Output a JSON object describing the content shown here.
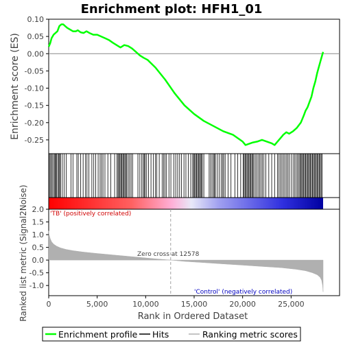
{
  "title": "Enrichment plot: HFH1_01",
  "colors": {
    "es_line": "#00ff00",
    "hit_line": "#000000",
    "metric_fill": "#b0b0b0",
    "zero_cross_line": "#a0a0a0",
    "positive_label": "#d00000",
    "negative_label": "#0000c0"
  },
  "chart_data": [
    {
      "name": "enrichment-profile",
      "type": "line",
      "ylabel": "Enrichment score (ES)",
      "xlim": [
        0,
        30000
      ],
      "ylim": [
        -0.29,
        0.1
      ],
      "yticks": [
        "0.10",
        "0.05",
        "0.00",
        "-0.05",
        "-0.10",
        "-0.15",
        "-0.20",
        "-0.25"
      ],
      "ytick_values": [
        0.1,
        0.05,
        0.0,
        -0.05,
        -0.1,
        -0.15,
        -0.2,
        -0.25
      ],
      "grid": false,
      "series": [
        {
          "name": "Enrichment profile",
          "x": [
            0,
            150,
            300,
            500,
            700,
            900,
            1100,
            1300,
            1500,
            1700,
            1900,
            2200,
            2500,
            2800,
            3000,
            3300,
            3600,
            3900,
            4200,
            4600,
            5000,
            5400,
            5800,
            6200,
            6600,
            7000,
            7400,
            7800,
            8200,
            8600,
            9000,
            9400,
            9800,
            10200,
            11000,
            12000,
            13000,
            14000,
            15000,
            16000,
            17000,
            18000,
            19000,
            20000,
            20300,
            20600,
            21000,
            21500,
            22000,
            22500,
            23000,
            23300,
            23600,
            23900,
            24200,
            24500,
            24800,
            25200,
            25600,
            26000,
            26300,
            26500,
            26700,
            26900,
            27100,
            27300,
            27500,
            27700,
            27900,
            28100,
            28300
          ],
          "values": [
            0.02,
            0.03,
            0.045,
            0.055,
            0.06,
            0.065,
            0.08,
            0.085,
            0.085,
            0.08,
            0.075,
            0.07,
            0.065,
            0.065,
            0.068,
            0.062,
            0.06,
            0.065,
            0.06,
            0.055,
            0.055,
            0.05,
            0.045,
            0.04,
            0.032,
            0.025,
            0.018,
            0.025,
            0.022,
            0.015,
            0.005,
            -0.005,
            -0.012,
            -0.018,
            -0.04,
            -0.075,
            -0.115,
            -0.15,
            -0.175,
            -0.195,
            -0.21,
            -0.225,
            -0.235,
            -0.255,
            -0.265,
            -0.262,
            -0.258,
            -0.255,
            -0.25,
            -0.255,
            -0.26,
            -0.265,
            -0.255,
            -0.245,
            -0.235,
            -0.228,
            -0.232,
            -0.225,
            -0.215,
            -0.2,
            -0.18,
            -0.165,
            -0.155,
            -0.14,
            -0.125,
            -0.1,
            -0.08,
            -0.055,
            -0.035,
            -0.015,
            0.005
          ]
        }
      ]
    },
    {
      "name": "hits",
      "type": "scatter",
      "series": [
        {
          "name": "Hits",
          "x": [
            80,
            200,
            300,
            420,
            560,
            650,
            720,
            820,
            950,
            1050,
            1150,
            1200,
            1400,
            1600,
            1800,
            2300,
            2500,
            2900,
            3050,
            3300,
            3550,
            3800,
            3950,
            4150,
            4450,
            4650,
            4850,
            5100,
            5300,
            5450,
            5600,
            5800,
            6100,
            6400,
            6800,
            7050,
            7150,
            7250,
            7350,
            7450,
            7550,
            7650,
            7750,
            7850,
            7950,
            8050,
            8200,
            8350,
            8500,
            8650,
            9200,
            9400,
            9600,
            9750,
            9850,
            9950,
            10100,
            10300,
            10550,
            10800,
            11000,
            11150,
            11400,
            11700,
            11850,
            12000,
            12150,
            12400,
            12600,
            12900,
            13100,
            13300,
            13500,
            13700,
            13950,
            14150,
            14400,
            14650,
            14850,
            14950,
            15050,
            15150,
            15250,
            15350,
            15450,
            15550,
            15650,
            15750,
            15850,
            16000,
            16550,
            16700,
            16850,
            17000,
            17100,
            17200,
            17400,
            17600,
            17800,
            17950,
            18050,
            18200,
            18500,
            18800,
            19200,
            19500,
            19800,
            20050,
            20150,
            20250,
            20350,
            20450,
            20550,
            20650,
            20750,
            20850,
            20950,
            21050,
            21150,
            21300,
            21450,
            21600,
            21750,
            21900,
            22050,
            22200,
            22400,
            22700,
            23000,
            23300,
            23600,
            23750,
            23900,
            24050,
            24200,
            24350,
            24500,
            24650,
            24800,
            25000,
            25200,
            25350,
            25500,
            25650,
            25800,
            25900,
            26000,
            26100,
            26200,
            26300,
            26400,
            26500,
            26600,
            26700,
            26800,
            26900,
            27000,
            27100,
            27200,
            27300,
            27400,
            27500,
            27600,
            27700,
            27800,
            27900,
            28000,
            28100,
            28200
          ]
        }
      ]
    },
    {
      "name": "ranked-metric",
      "type": "area",
      "xlabel": "Rank in Ordered Dataset",
      "ylabel": "Ranked list metric (Signal2Noise)",
      "xlim": [
        0,
        30000
      ],
      "ylim": [
        -1.4,
        2.0
      ],
      "xticks": [
        "0",
        "5,000",
        "10,000",
        "15,000",
        "20,000",
        "25,000"
      ],
      "xtick_values": [
        0,
        5000,
        10000,
        15000,
        20000,
        25000
      ],
      "yticks": [
        "2.0",
        "1.5",
        "1.0",
        "0.5",
        "0.0",
        "-0.5",
        "-1.0"
      ],
      "ytick_values": [
        2.0,
        1.5,
        1.0,
        0.5,
        0.0,
        -0.5,
        -1.0
      ],
      "zero_cross": 12578,
      "annotations": [
        "Zero cross at 12578",
        "'TB' (positively correlated)",
        "'Control' (negatively correlated)"
      ],
      "series": [
        {
          "name": "Ranking metric scores",
          "x": [
            0,
            50,
            150,
            300,
            500,
            800,
            1200,
            1800,
            2500,
            3500,
            5000,
            7000,
            9000,
            11000,
            12578,
            14000,
            16000,
            18000,
            20000,
            22000,
            24000,
            25500,
            26500,
            27200,
            27700,
            28000,
            28150,
            28250,
            28300
          ],
          "values": [
            1.15,
            1.0,
            0.85,
            0.72,
            0.63,
            0.55,
            0.48,
            0.42,
            0.37,
            0.32,
            0.26,
            0.19,
            0.12,
            0.05,
            0.0,
            -0.05,
            -0.1,
            -0.15,
            -0.2,
            -0.25,
            -0.3,
            -0.36,
            -0.42,
            -0.5,
            -0.58,
            -0.68,
            -0.8,
            -1.0,
            -1.25
          ]
        }
      ]
    }
  ],
  "legend": {
    "items": [
      "Enrichment profile",
      "Hits",
      "Ranking metric scores"
    ]
  }
}
